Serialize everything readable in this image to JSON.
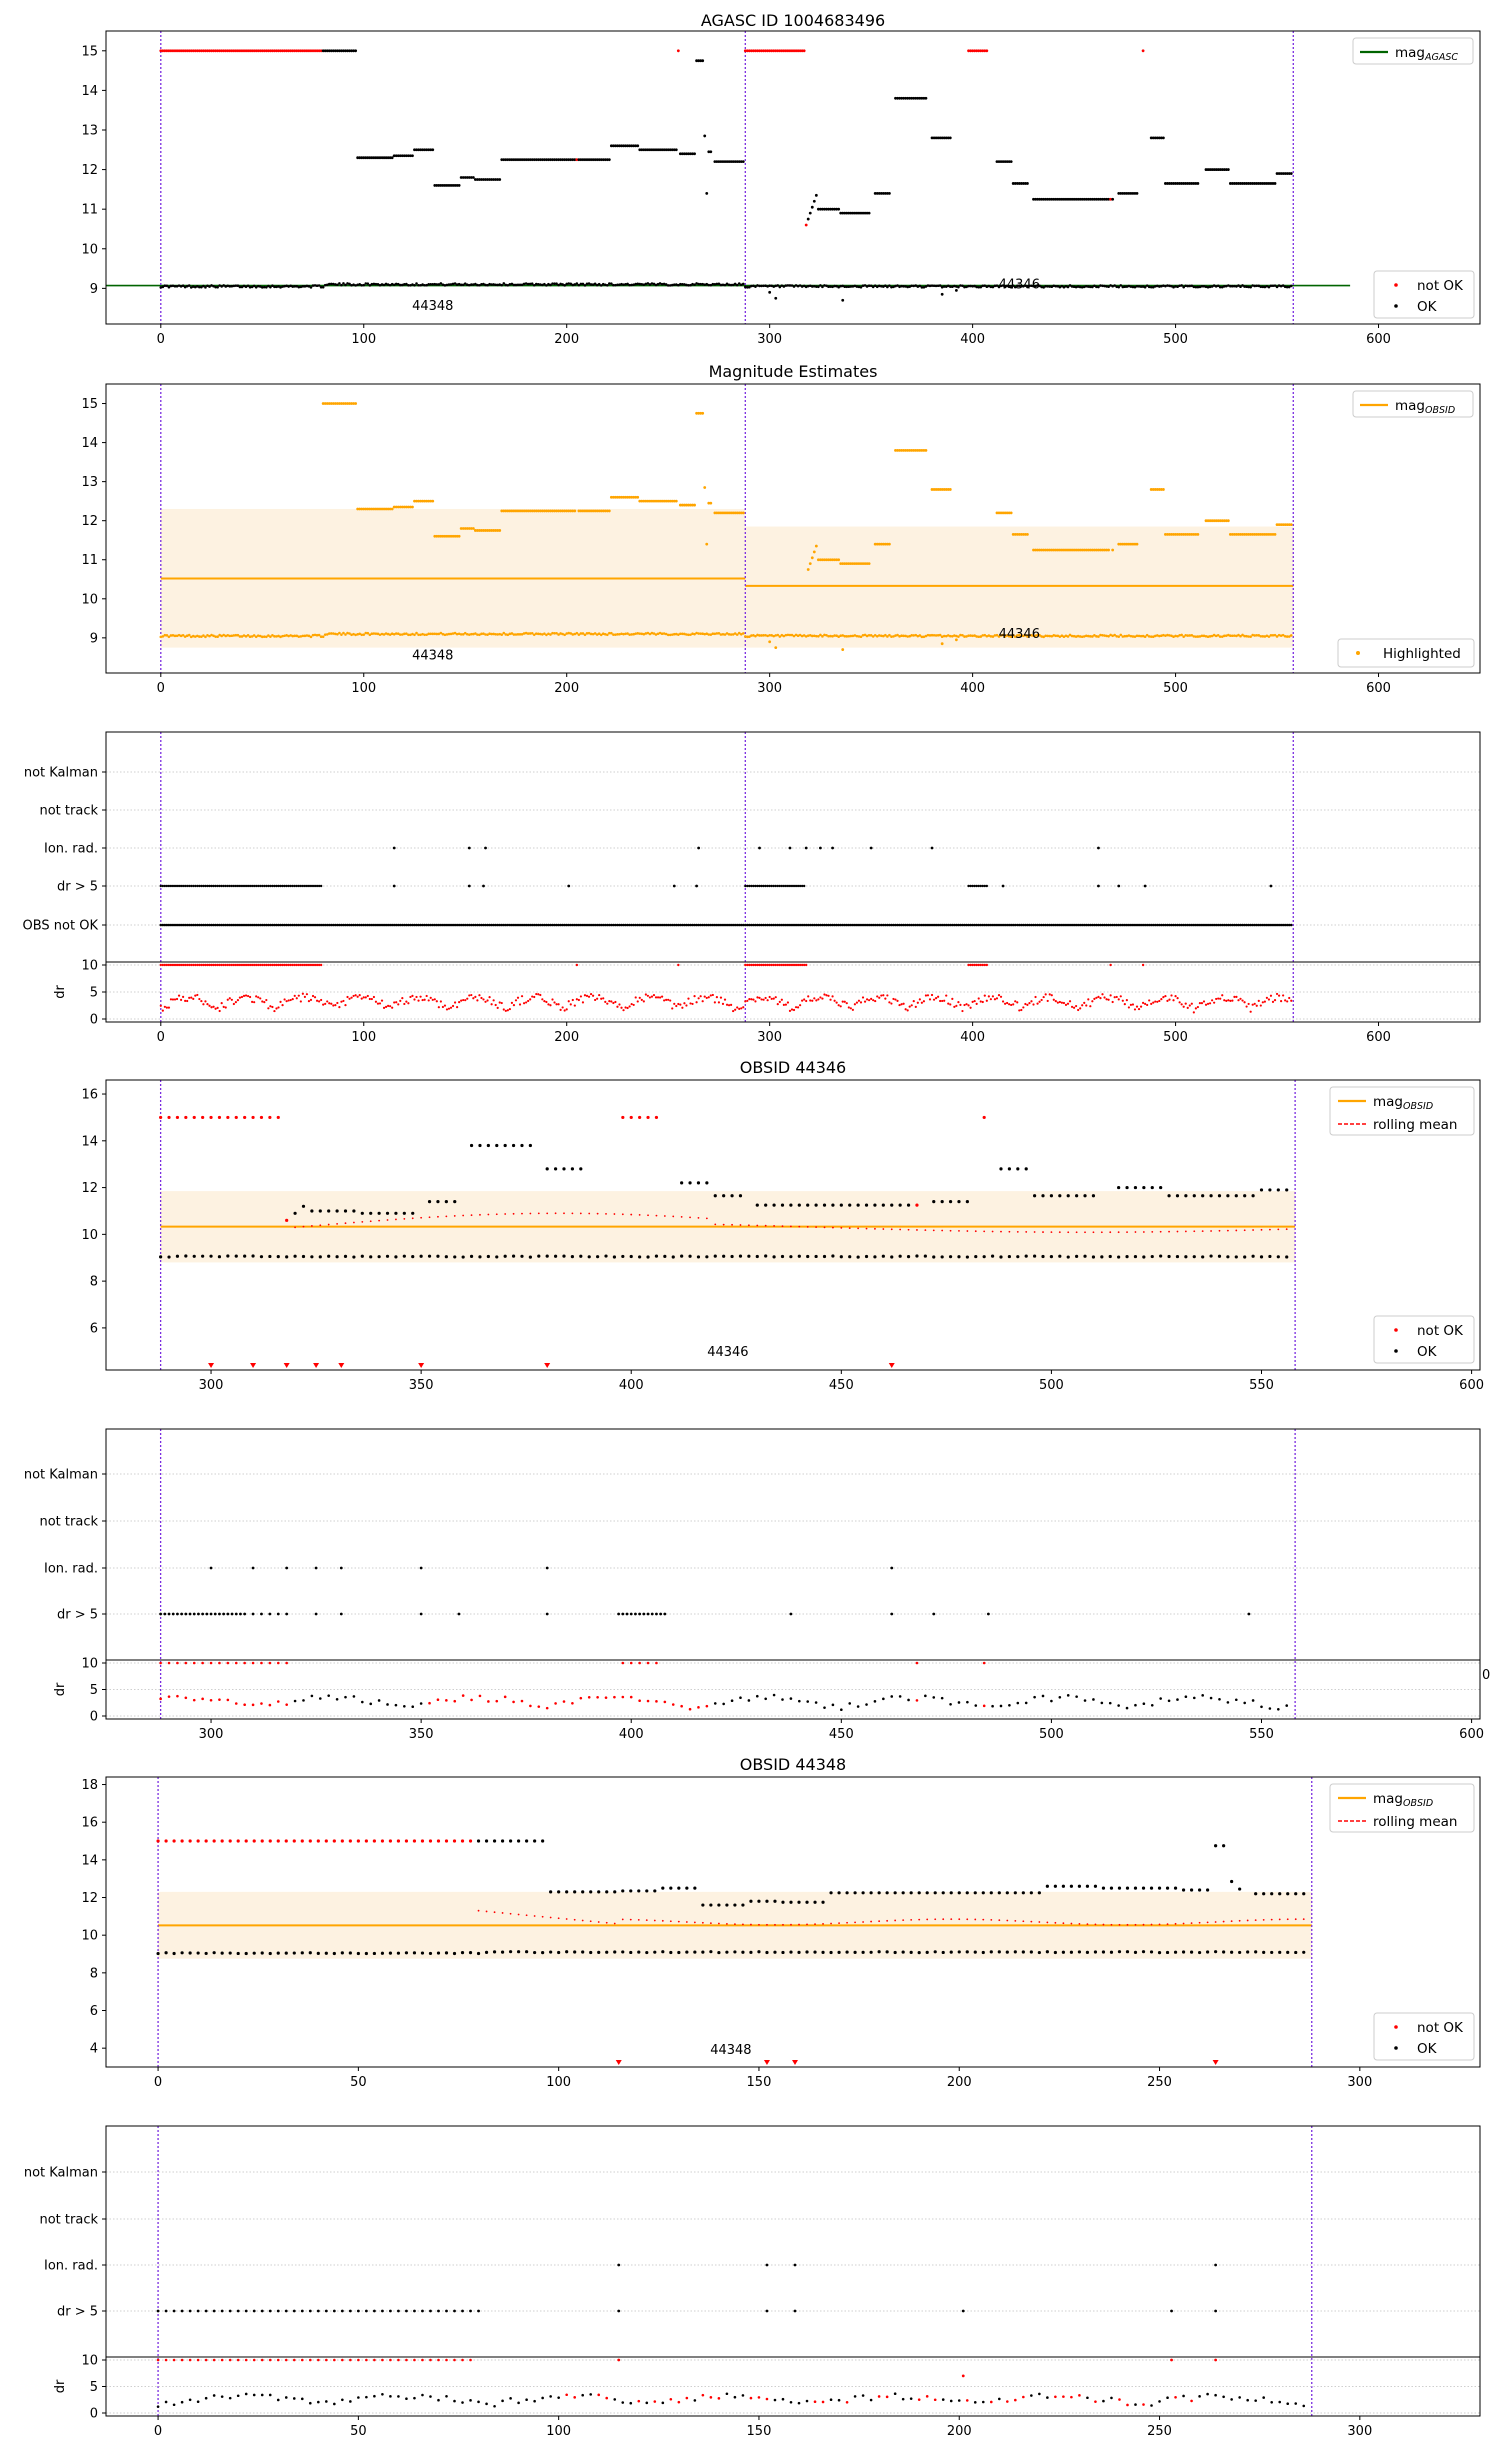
{
  "figure": {
    "titles": {
      "agasc": "AGASC ID 1004683496",
      "estimates": "Magnitude Estimates",
      "obs44346": "OBSID 44346",
      "obs44348": "OBSID 44348"
    },
    "legend": {
      "mag_agasc_base": "mag",
      "mag_agasc_sub": "AGASC",
      "mag_obsid_base": "mag",
      "mag_obsid_sub": "OBSID",
      "rolling_mean": "rolling mean",
      "not_ok": "not OK",
      "ok": "OK",
      "highlighted": "Highlighted"
    },
    "annotations": {
      "obsid_a": "44348",
      "obsid_b": "44346"
    },
    "flag_labels": [
      "not Kalman",
      "not track",
      "Ion. rad.",
      "dr > 5",
      "OBS not OK"
    ],
    "dr_label": "dr",
    "stray_tick": "0",
    "colors": {
      "ok": "#000000",
      "not_ok": "#ff0000",
      "highlight": "#ffa500",
      "band": "#fdf2e1",
      "agasc_line": "#006400",
      "vline": "#7a2ce0",
      "grid": "#cfcfcf"
    }
  },
  "chart_data": [
    {
      "type": "scatter",
      "title": "AGASC ID 1004683496",
      "xlim": [
        -27,
        650
      ],
      "ylim": [
        8.1,
        15.5
      ],
      "xticks": [
        0,
        100,
        200,
        300,
        400,
        500,
        600
      ],
      "yticks": [
        9,
        10,
        11,
        12,
        13,
        14,
        15
      ],
      "legend_upper": "top-right",
      "legend_lower": "bottom-right",
      "mag_agasc": 9.07,
      "obsid_boundaries": [
        0,
        288,
        558
      ],
      "series": [
        {
          "name": "not OK",
          "description_ranges": [
            [
              0,
              80,
              15.0
            ],
            [
              288,
              318,
              15.0
            ],
            [
              398,
              408,
              15.0
            ]
          ]
        },
        {
          "name": "OK",
          "upper_segments": [
            [
              80,
              97,
              15.0
            ],
            [
              97,
              115,
              12.3
            ],
            [
              115,
              125,
              12.35
            ],
            [
              125,
              135,
              12.5
            ],
            [
              135,
              148,
              11.6
            ],
            [
              148,
              155,
              11.8
            ],
            [
              155,
              168,
              11.75
            ],
            [
              168,
              200,
              12.25
            ],
            [
              200,
              222,
              12.25
            ],
            [
              222,
              236,
              12.6
            ],
            [
              236,
              255,
              12.5
            ],
            [
              255,
              265,
              12.4
            ],
            [
              273,
              288,
              12.2
            ],
            [
              335,
              350,
              10.9
            ],
            [
              352,
              360,
              11.4
            ],
            [
              362,
              378,
              13.8
            ],
            [
              380,
              390,
              12.8
            ],
            [
              412,
              420,
              12.2
            ],
            [
              418,
              428,
              11.65
            ],
            [
              430,
              470,
              11.25
            ],
            [
              472,
              482,
              11.4
            ],
            [
              488,
              495,
              12.8
            ],
            [
              495,
              512,
              11.65
            ],
            [
              515,
              527,
              12.0
            ],
            [
              527,
              550,
              11.65
            ],
            [
              548,
              558,
              11.9
            ]
          ],
          "baseline": 9.1
        }
      ],
      "annotations": [
        {
          "text": "44348",
          "x": 134,
          "y": 8.45
        },
        {
          "text": "44346",
          "x": 412,
          "y": 8.95
        }
      ]
    },
    {
      "type": "scatter",
      "title": "Magnitude Estimates",
      "xlim": [
        -27,
        650
      ],
      "ylim": [
        8.1,
        15.5
      ],
      "xticks": [
        0,
        100,
        200,
        300,
        400,
        500,
        600
      ],
      "yticks": [
        9,
        10,
        11,
        12,
        13,
        14,
        15
      ],
      "series": [
        {
          "name": "Highlighted",
          "color": "#ffa500"
        },
        {
          "name": "mag_OBSID",
          "segments": [
            {
              "x": [
                0,
                288
              ],
              "y": 10.52,
              "band": [
                8.75,
                12.3
              ]
            },
            {
              "x": [
                288,
                558
              ],
              "y": 10.33,
              "band": [
                8.75,
                11.85
              ]
            }
          ]
        }
      ]
    },
    {
      "type": "scatter",
      "title": "",
      "categories": [
        "not Kalman",
        "not track",
        "Ion. rad.",
        "dr > 5",
        "OBS not OK"
      ],
      "xlim": [
        -27,
        650
      ],
      "ion_rad_x": [
        115,
        152,
        160,
        265,
        295,
        310,
        318,
        325,
        331,
        350,
        380,
        462
      ],
      "dr_ylim": [
        0,
        10
      ],
      "dr_yticks": [
        0,
        5,
        10
      ]
    },
    {
      "type": "scatter",
      "title": "OBSID 44346",
      "xlim": [
        275,
        602
      ],
      "ylim": [
        4.2,
        16.6
      ],
      "xticks": [
        300,
        350,
        400,
        450,
        500,
        550,
        600
      ],
      "yticks": [
        6,
        8,
        10,
        12,
        14,
        16
      ],
      "mag_obsid": 10.33,
      "band": [
        8.8,
        11.85
      ],
      "triangles_x": [
        300,
        310,
        318,
        325,
        331,
        350,
        380,
        462
      ],
      "annotation": {
        "text": "44346",
        "x": 423
      }
    },
    {
      "type": "scatter",
      "title": "",
      "categories": [
        "not Kalman",
        "not track",
        "Ion. rad.",
        "dr > 5"
      ],
      "xlim": [
        275,
        602
      ],
      "ion_rad_x": [
        300,
        310,
        318,
        325,
        331,
        350,
        380,
        462
      ],
      "dr5_x": [
        288,
        289,
        290,
        291,
        292,
        293,
        294,
        295,
        296,
        297,
        298,
        299,
        300,
        301,
        302,
        303,
        304,
        305,
        306,
        307,
        308,
        310,
        312,
        314,
        316,
        318,
        325,
        331,
        350,
        359,
        380,
        397,
        398,
        399,
        400,
        401,
        402,
        403,
        404,
        405,
        406,
        407,
        408,
        438,
        462,
        472,
        485,
        547
      ]
    },
    {
      "type": "scatter",
      "title": "OBSID 44348",
      "xlim": [
        -13,
        330
      ],
      "ylim": [
        3.0,
        18.4
      ],
      "xticks": [
        0,
        50,
        100,
        150,
        200,
        250,
        300
      ],
      "yticks": [
        4,
        6,
        8,
        10,
        12,
        14,
        16,
        18
      ],
      "mag_obsid": 10.52,
      "band": [
        8.75,
        12.3
      ],
      "triangles_x": [
        115,
        152,
        159,
        264
      ],
      "annotation": {
        "text": "44348",
        "x": 143
      }
    },
    {
      "type": "scatter",
      "title": "",
      "categories": [
        "not Kalman",
        "not track",
        "Ion. rad.",
        "dr > 5"
      ],
      "xlim": [
        -13,
        330
      ],
      "ion_rad_x": [
        115,
        152,
        159,
        264
      ],
      "dr5_x": [
        0,
        2,
        4,
        6,
        8,
        10,
        12,
        14,
        16,
        18,
        20,
        22,
        24,
        26,
        28,
        30,
        32,
        34,
        36,
        38,
        40,
        42,
        44,
        46,
        48,
        50,
        52,
        54,
        56,
        58,
        60,
        62,
        64,
        66,
        68,
        70,
        72,
        74,
        76,
        78,
        80,
        115,
        152,
        159,
        201,
        253,
        264
      ]
    }
  ]
}
